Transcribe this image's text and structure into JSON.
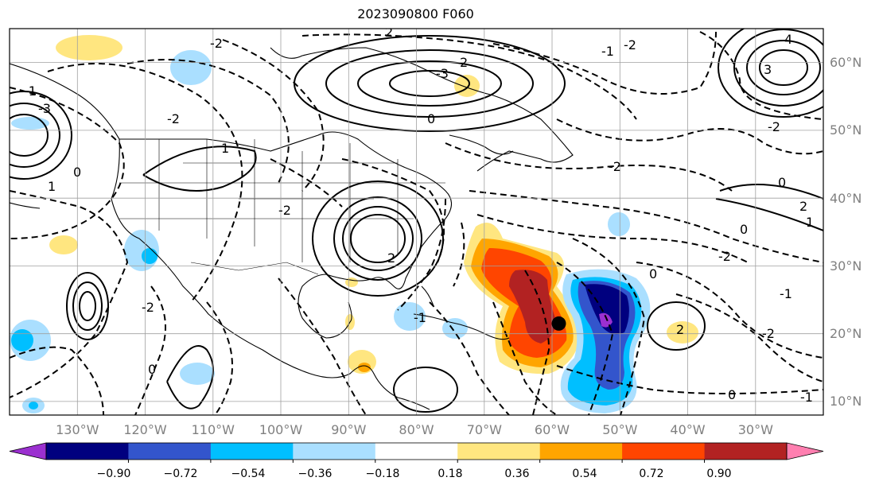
{
  "title": "2023090800 F060",
  "map": {
    "projection": "cylindrical",
    "lon_range": [
      -142,
      -22
    ],
    "lat_range": [
      8,
      65
    ],
    "lon_ticks": [
      "130°W",
      "120°W",
      "110°W",
      "100°W",
      "90°W",
      "80°W",
      "70°W",
      "60°W",
      "50°W",
      "40°W",
      "30°W"
    ],
    "lat_ticks": [
      "60°N",
      "50°N",
      "40°N",
      "30°N",
      "20°N",
      "10°N"
    ],
    "gridlines": true,
    "storm_marker": {
      "lon": -61,
      "lat": 21.5,
      "color": "#000000"
    }
  },
  "contour_labels": [
    "2",
    "-2",
    "-3",
    "-1",
    "0",
    "1",
    "-2",
    "3",
    "4",
    "2",
    "-2",
    "-1",
    "0",
    "-2",
    "-3",
    "2",
    "-1",
    "0",
    "-2",
    "1",
    "2",
    "-2",
    "0",
    "-1",
    "-2",
    "0",
    "2",
    "-2",
    "0",
    "-1",
    "1",
    "-2",
    "0"
  ],
  "colorbar": {
    "ticks": [
      "−0.90",
      "−0.72",
      "−0.54",
      "−0.36",
      "−0.18",
      "0.18",
      "0.36",
      "0.54",
      "0.72",
      "0.90"
    ],
    "colors": [
      "#9b30d0",
      "#00007f",
      "#3355cc",
      "#00bfff",
      "#aadfff",
      "#ffffff",
      "#ffe680",
      "#ffa500",
      "#ff4500",
      "#b22222",
      "#ff7fb0"
    ],
    "extend": "both"
  }
}
